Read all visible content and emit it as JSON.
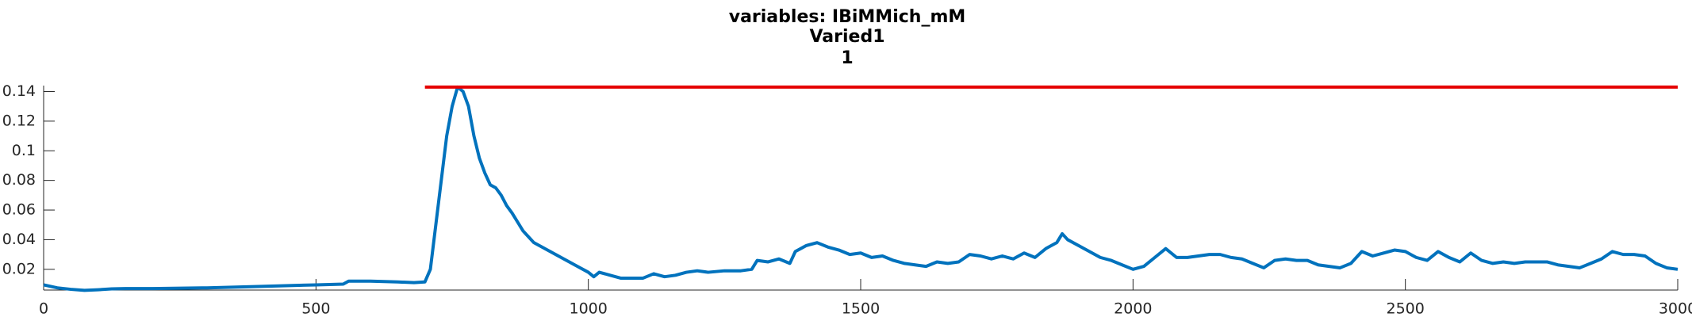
{
  "chart_data": {
    "type": "line",
    "title": "variables: IBiMMich_mM",
    "subtitle": "Varied1",
    "subtitle2": "1",
    "xlim": [
      0,
      3000
    ],
    "xticks": [
      0,
      500,
      1000,
      1500,
      2000,
      2500,
      3000
    ],
    "ylim": [
      0.006,
      0.144
    ],
    "yticks": [
      0.02,
      0.04,
      0.06,
      0.08,
      0.1,
      0.12,
      0.14
    ],
    "series": [
      {
        "color": "#0072bd",
        "x": [
          0,
          25,
          50,
          75,
          100,
          125,
          150,
          200,
          300,
          400,
          500,
          550,
          560,
          600,
          650,
          680,
          700,
          710,
          720,
          730,
          740,
          750,
          760,
          770,
          780,
          790,
          800,
          810,
          820,
          830,
          840,
          850,
          860,
          870,
          880,
          900,
          920,
          940,
          960,
          980,
          1000,
          1010,
          1020,
          1040,
          1060,
          1080,
          1100,
          1120,
          1140,
          1160,
          1180,
          1200,
          1220,
          1250,
          1280,
          1300,
          1310,
          1330,
          1350,
          1370,
          1380,
          1400,
          1420,
          1440,
          1460,
          1480,
          1500,
          1520,
          1540,
          1560,
          1580,
          1600,
          1620,
          1640,
          1660,
          1680,
          1700,
          1720,
          1740,
          1760,
          1780,
          1800,
          1820,
          1840,
          1860,
          1870,
          1880,
          1900,
          1920,
          1940,
          1960,
          1980,
          2000,
          2020,
          2040,
          2060,
          2080,
          2100,
          2120,
          2140,
          2160,
          2180,
          2200,
          2220,
          2240,
          2260,
          2280,
          2300,
          2320,
          2340,
          2360,
          2380,
          2400,
          2420,
          2440,
          2460,
          2480,
          2500,
          2520,
          2540,
          2560,
          2580,
          2600,
          2620,
          2640,
          2660,
          2680,
          2700,
          2720,
          2740,
          2760,
          2780,
          2800,
          2820,
          2840,
          2860,
          2880,
          2900,
          2920,
          2940,
          2960,
          2980,
          3000
        ],
        "values": [
          0.0095,
          0.0075,
          0.0065,
          0.0058,
          0.0062,
          0.0068,
          0.007,
          0.007,
          0.0075,
          0.0085,
          0.0095,
          0.01,
          0.012,
          0.012,
          0.0115,
          0.011,
          0.0115,
          0.02,
          0.05,
          0.08,
          0.11,
          0.13,
          0.143,
          0.14,
          0.13,
          0.11,
          0.095,
          0.085,
          0.077,
          0.075,
          0.07,
          0.063,
          0.058,
          0.052,
          0.046,
          0.038,
          0.034,
          0.03,
          0.026,
          0.022,
          0.018,
          0.015,
          0.018,
          0.016,
          0.014,
          0.014,
          0.014,
          0.017,
          0.015,
          0.016,
          0.018,
          0.019,
          0.018,
          0.019,
          0.019,
          0.02,
          0.026,
          0.025,
          0.027,
          0.024,
          0.032,
          0.036,
          0.038,
          0.035,
          0.033,
          0.03,
          0.031,
          0.028,
          0.029,
          0.026,
          0.024,
          0.023,
          0.022,
          0.025,
          0.024,
          0.025,
          0.03,
          0.029,
          0.027,
          0.029,
          0.027,
          0.031,
          0.028,
          0.034,
          0.038,
          0.044,
          0.04,
          0.036,
          0.032,
          0.028,
          0.026,
          0.023,
          0.02,
          0.022,
          0.028,
          0.034,
          0.028,
          0.028,
          0.029,
          0.03,
          0.03,
          0.028,
          0.027,
          0.024,
          0.021,
          0.026,
          0.027,
          0.026,
          0.026,
          0.023,
          0.022,
          0.021,
          0.024,
          0.032,
          0.029,
          0.031,
          0.033,
          0.032,
          0.028,
          0.026,
          0.032,
          0.028,
          0.025,
          0.031,
          0.026,
          0.024,
          0.025,
          0.024,
          0.025,
          0.025,
          0.025,
          0.023,
          0.022,
          0.021,
          0.024,
          0.027,
          0.032,
          0.03,
          0.03,
          0.029,
          0.024,
          0.021,
          0.02
        ]
      },
      {
        "color": "#e50000",
        "x": [
          700,
          3000
        ],
        "values": [
          0.143,
          0.143
        ]
      }
    ]
  }
}
